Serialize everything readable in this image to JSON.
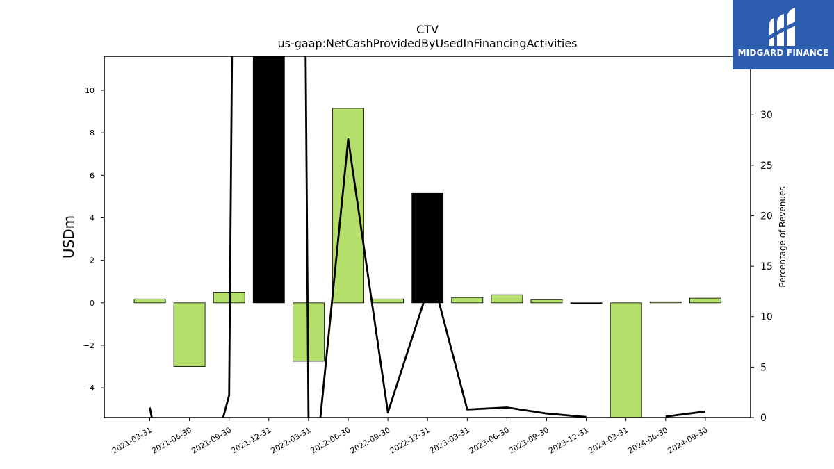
{
  "title": "CTV",
  "subtitle": "us-gaap:NetCashProvidedByUsedInFinancingActivities",
  "logo": {
    "text": "MIDGARD FINANCE",
    "icon": "midgard-logo-icon",
    "background": "#2b5cad"
  },
  "chart_data": {
    "type": "bar",
    "categories": [
      "2021-03-31",
      "2021-06-30",
      "2021-09-30",
      "2021-12-31",
      "2022-03-31",
      "2022-06-30",
      "2022-09-30",
      "2022-12-31",
      "2023-03-31",
      "2023-06-30",
      "2023-09-30",
      "2023-12-31",
      "2024-03-31",
      "2024-06-30",
      "2024-09-30"
    ],
    "ylabel": "USDm",
    "y2label": "Percentage of Revenues",
    "ylim": [
      -5.4,
      11.6
    ],
    "y2lim": [
      0,
      35.8
    ],
    "yticks": [
      -4,
      -2,
      0,
      2,
      4,
      6,
      8,
      10
    ],
    "y2ticks": [
      0,
      5,
      10,
      15,
      20,
      25,
      30
    ],
    "series": [
      {
        "type": "bar",
        "values": [
          0.18,
          -3.0,
          0.5,
          12.0,
          -2.75,
          9.15,
          0.18,
          5.15,
          0.25,
          0.38,
          0.15,
          0.0,
          -5.6,
          0.05,
          0.22
        ],
        "colors": [
          "#b4df6b",
          "#b4df6b",
          "#b4df6b",
          "#000000",
          "#b4df6b",
          "#b4df6b",
          "#b4df6b",
          "#000000",
          "#b4df6b",
          "#b4df6b",
          "#b4df6b",
          "#000000",
          "#b4df6b",
          "#b4df6b",
          "#b4df6b"
        ]
      },
      {
        "type": "line",
        "axis": "right",
        "color": "#000000",
        "segments": [
          [
            [
              0,
              1.0
            ],
            [
              0.05,
              0.0
            ]
          ],
          [
            [
              1.85,
              0.0
            ],
            [
              2.0,
              2.2
            ],
            [
              2.08,
              40.0
            ]
          ],
          [
            [
              3.92,
              40.0
            ],
            [
              4.0,
              0.0
            ]
          ],
          [
            [
              4.3,
              0.0
            ],
            [
              5.0,
              27.6
            ],
            [
              6.0,
              0.5
            ],
            [
              6.95,
              12.0
            ]
          ],
          [
            [
              7.25,
              12.0
            ],
            [
              8.0,
              0.8
            ],
            [
              9.0,
              1.0
            ],
            [
              10.0,
              0.4
            ],
            [
              11.0,
              0.05
            ]
          ],
          [
            [
              13.0,
              0.1
            ],
            [
              14.0,
              0.6
            ]
          ]
        ]
      }
    ]
  }
}
